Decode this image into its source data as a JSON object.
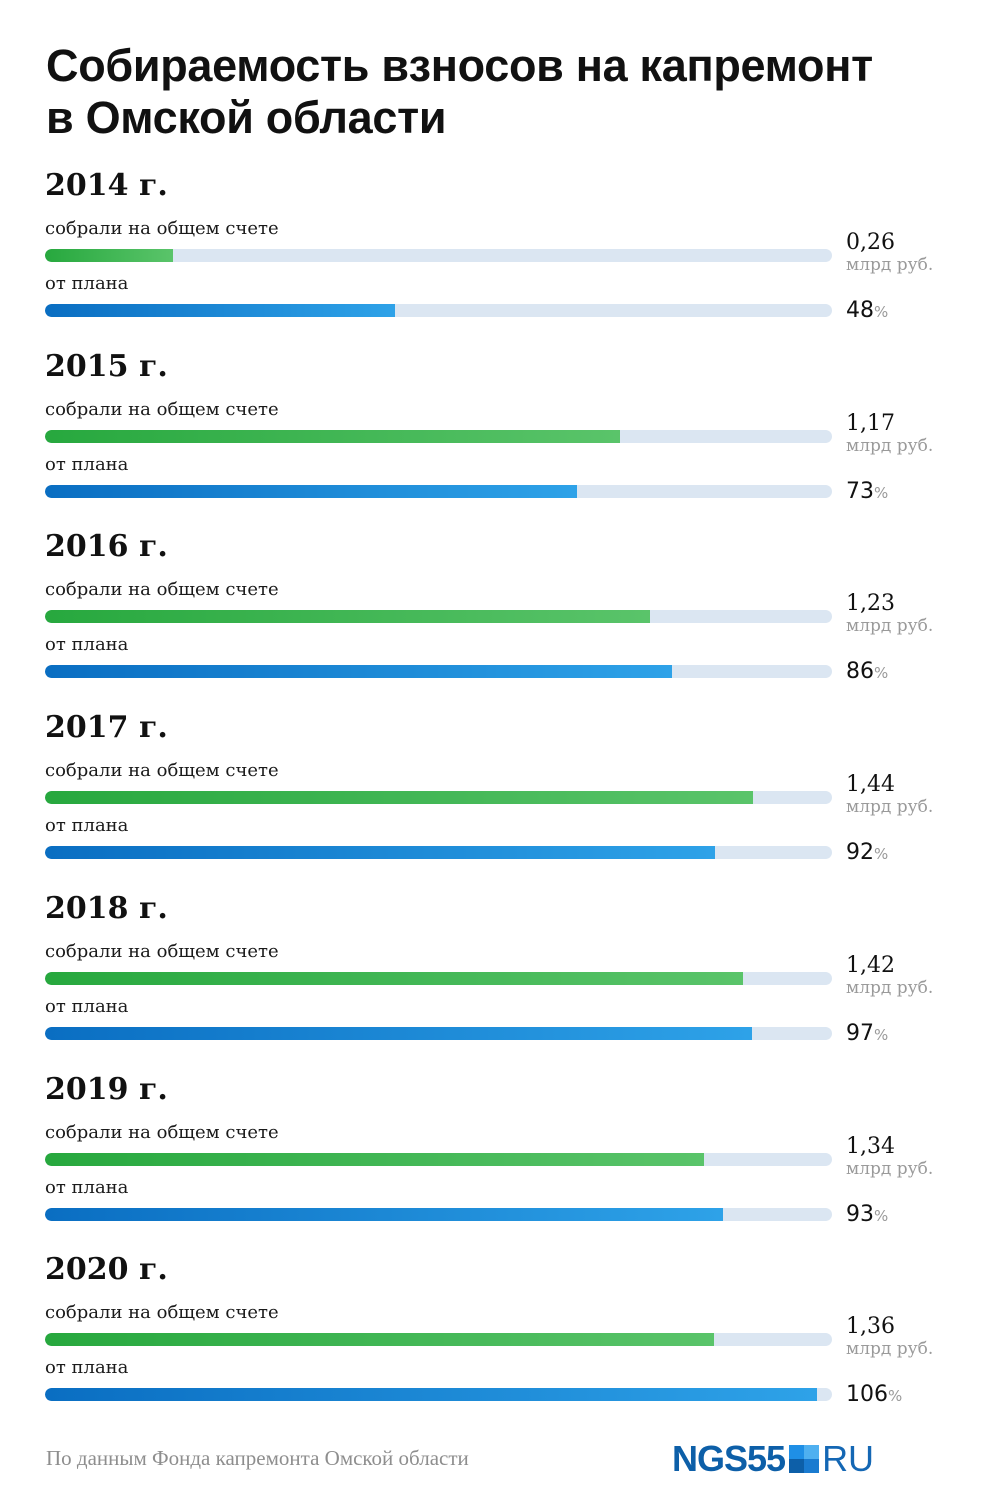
{
  "title_line1": "Собираемость взносов на капремонт",
  "title_line2": "в Омской области",
  "row_labels": {
    "collected": "собрали на общем счете",
    "plan": "от плана"
  },
  "unit_money": "млрд руб.",
  "unit_percent": "%",
  "colors": {
    "collected_start": "#27a83e",
    "collected_end": "#5ac46a",
    "plan_start": "#0a6ec2",
    "plan_end": "#2ea2e8",
    "track": "#dbe6f2",
    "logo_blue": "#0d5fa8"
  },
  "footer": {
    "source": "По данным Фонда капремонта Омской области",
    "logo_main": "NGS55",
    "logo_suffix": "RU"
  },
  "chart_data": {
    "type": "bar",
    "orientation": "horizontal",
    "title": "Собираемость взносов на капремонт в Омской области",
    "categories": [
      "2014 г.",
      "2015 г.",
      "2016 г.",
      "2017 г.",
      "2018 г.",
      "2019 г.",
      "2020 г."
    ],
    "series": [
      {
        "name": "собрали на общем счете",
        "unit": "млрд руб.",
        "values": [
          0.26,
          1.17,
          1.23,
          1.44,
          1.42,
          1.34,
          1.36
        ],
        "labels": [
          "0,26",
          "1,17",
          "1,23",
          "1,44",
          "1,42",
          "1,34",
          "1,36"
        ],
        "scale_max": 1.6
      },
      {
        "name": "от плана",
        "unit": "%",
        "values": [
          48,
          73,
          86,
          92,
          97,
          93,
          106
        ],
        "labels": [
          "48",
          "73",
          "86",
          "92",
          "97",
          "93",
          "106"
        ],
        "scale_max": 108
      }
    ],
    "source": "По данным Фонда капремонта Омской области"
  }
}
